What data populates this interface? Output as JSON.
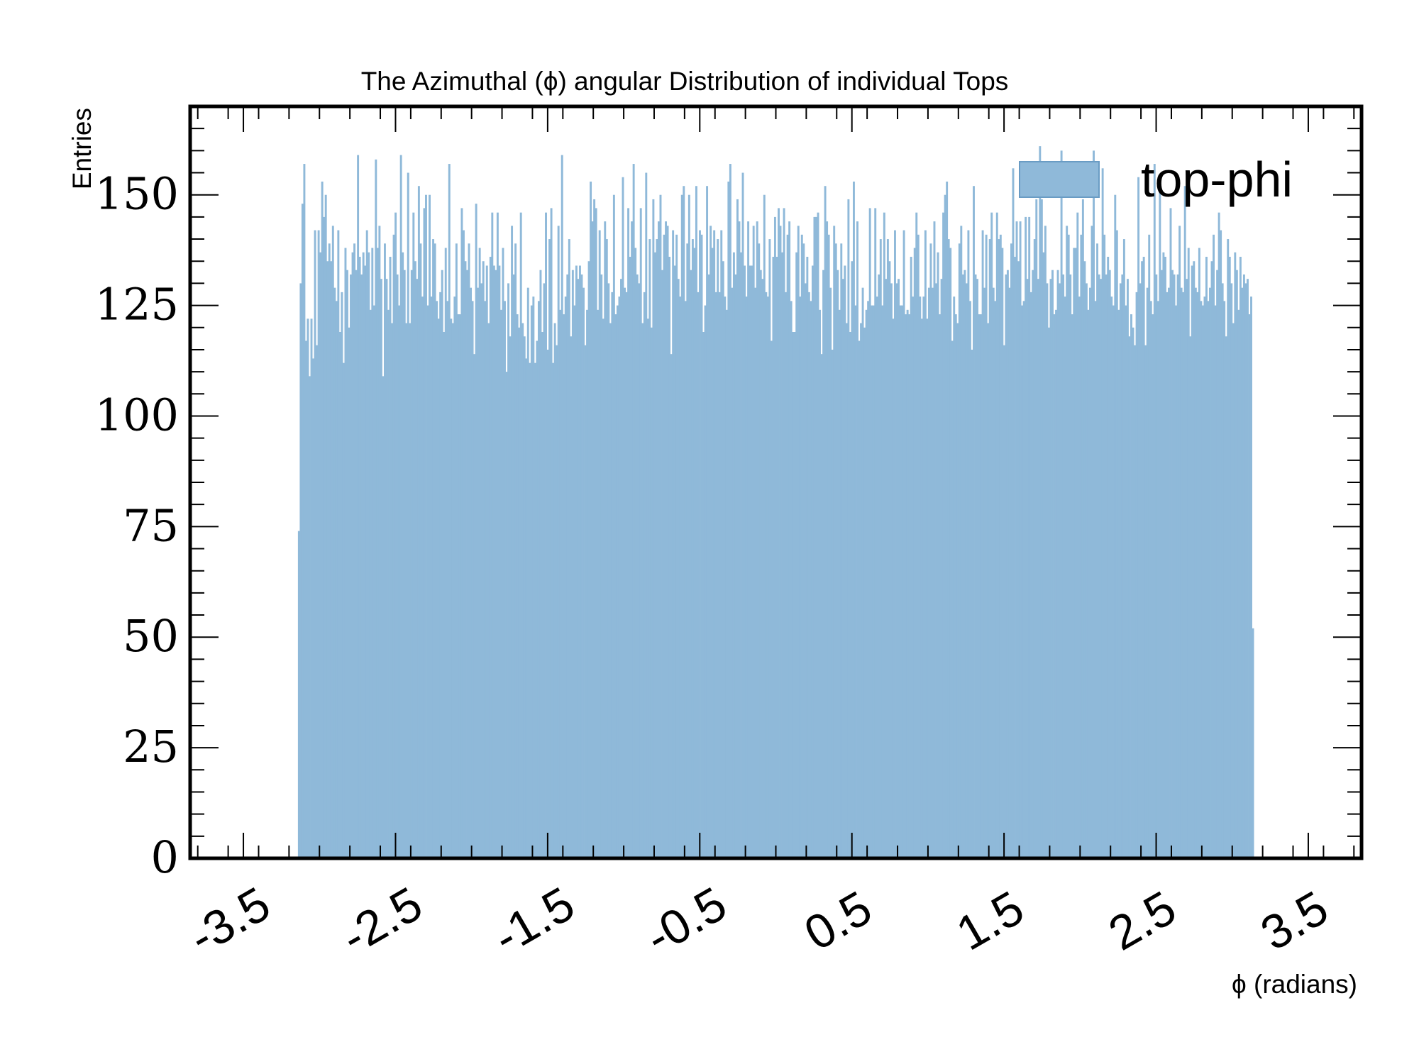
{
  "chart_data": {
    "type": "bar",
    "title": "The Azimuthal (ϕ) angular Distribution of individual Tops",
    "xlabel": "ϕ (radians)",
    "ylabel": "Entries",
    "xlim": [
      -3.85,
      3.85
    ],
    "ylim": [
      0,
      170
    ],
    "x_ticks": [
      -3.5,
      -2.5,
      -1.5,
      -0.5,
      0.5,
      1.5,
      2.5,
      3.5
    ],
    "x_tick_labels": [
      "-3.5",
      "-2.5",
      "-1.5",
      "-0.5",
      "0.5",
      "1.5",
      "2.5",
      "3.5"
    ],
    "y_ticks": [
      0,
      25,
      50,
      75,
      100,
      125,
      150
    ],
    "y_tick_labels": [
      "0",
      "25",
      "50",
      "75",
      "100",
      "125",
      "150"
    ],
    "grid": false,
    "legend_position": "top-right",
    "bin_range": [
      -3.1416,
      3.1416
    ],
    "series": [
      {
        "name": "top-phi",
        "color": "#8fb9d9",
        "values": [
          74,
          130,
          148,
          157,
          117,
          122,
          109,
          122,
          113,
          142,
          116,
          142,
          137,
          153,
          145,
          150,
          135,
          139,
          135,
          143,
          129,
          126,
          142,
          119,
          128,
          112,
          138,
          133,
          120,
          132,
          137,
          139,
          133,
          159,
          136,
          132,
          137,
          134,
          142,
          137,
          124,
          138,
          125,
          158,
          138,
          143,
          131,
          109,
          139,
          131,
          124,
          136,
          121,
          141,
          146,
          132,
          125,
          159,
          137,
          133,
          121,
          155,
          121,
          133,
          146,
          135,
          131,
          152,
          139,
          127,
          147,
          150,
          125,
          150,
          127,
          140,
          139,
          126,
          122,
          128,
          133,
          119,
          138,
          126,
          157,
          122,
          121,
          127,
          139,
          123,
          123,
          147,
          142,
          135,
          133,
          139,
          129,
          126,
          114,
          148,
          129,
          138,
          130,
          135,
          126,
          134,
          121,
          136,
          146,
          134,
          133,
          146,
          134,
          124,
          138,
          126,
          110,
          130,
          118,
          143,
          132,
          139,
          123,
          120,
          146,
          121,
          118,
          113,
          129,
          112,
          125,
          127,
          112,
          117,
          126,
          133,
          119,
          130,
          146,
          115,
          140,
          147,
          112,
          121,
          116,
          143,
          124,
          159,
          123,
          127,
          132,
          140,
          118,
          133,
          125,
          134,
          131,
          134,
          132,
          129,
          116,
          124,
          135,
          153,
          144,
          149,
          147,
          124,
          142,
          132,
          122,
          144,
          140,
          130,
          121,
          128,
          150,
          123,
          125,
          127,
          131,
          154,
          129,
          128,
          147,
          136,
          144,
          157,
          138,
          132,
          130,
          147,
          121,
          128,
          155,
          122,
          140,
          120,
          149,
          137,
          140,
          144,
          150,
          133,
          141,
          144,
          143,
          136,
          114,
          142,
          134,
          141,
          131,
          127,
          150,
          152,
          126,
          139,
          150,
          133,
          140,
          138,
          152,
          128,
          142,
          141,
          119,
          125,
          152,
          132,
          143,
          138,
          142,
          128,
          140,
          128,
          142,
          135,
          127,
          124,
          153,
          157,
          129,
          137,
          132,
          149,
          144,
          137,
          155,
          134,
          127,
          144,
          134,
          134,
          143,
          129,
          144,
          139,
          133,
          131,
          150,
          128,
          127,
          140,
          117,
          136,
          145,
          136,
          147,
          143,
          137,
          147,
          128,
          141,
          144,
          126,
          119,
          119,
          137,
          143,
          127,
          141,
          139,
          130,
          136,
          128,
          126,
          134,
          145,
          145,
          146,
          124,
          114,
          133,
          152,
          144,
          141,
          129,
          115,
          143,
          139,
          133,
          124,
          139,
          131,
          134,
          121,
          149,
          119,
          135,
          153,
          125,
          144,
          117,
          121,
          129,
          120,
          124,
          126,
          147,
          125,
          125,
          147,
          127,
          132,
          140,
          125,
          146,
          131,
          140,
          135,
          130,
          122,
          142,
          130,
          131,
          125,
          125,
          142,
          123,
          124,
          123,
          136,
          127,
          138,
          146,
          141,
          127,
          122,
          127,
          142,
          122,
          129,
          139,
          129,
          144,
          130,
          137,
          123,
          131,
          146,
          150,
          153,
          140,
          138,
          117,
          127,
          123,
          121,
          139,
          143,
          132,
          133,
          130,
          142,
          126,
          115,
          152,
          132,
          131,
          123,
          123,
          142,
          129,
          141,
          121,
          140,
          146,
          129,
          126,
          146,
          140,
          141,
          138,
          116,
          132,
          133,
          129,
          139,
          156,
          136,
          144,
          135,
          144,
          125,
          126,
          145,
          131,
          145,
          128,
          133,
          140,
          149,
          131,
          161,
          149,
          137,
          143,
          130,
          120,
          131,
          133,
          123,
          124,
          133,
          130,
          160,
          132,
          127,
          143,
          141,
          132,
          123,
          138,
          138,
          146,
          127,
          141,
          149,
          135,
          130,
          124,
          129,
          143,
          160,
          126,
          139,
          132,
          131,
          156,
          141,
          132,
          136,
          133,
          127,
          125,
          150,
          142,
          124,
          130,
          132,
          140,
          125,
          131,
          118,
          123,
          120,
          116,
          128,
          154,
          130,
          135,
          136,
          116,
          129,
          141,
          126,
          123,
          157,
          132,
          126,
          151,
          133,
          137,
          136,
          128,
          129,
          147,
          133,
          132,
          125,
          132,
          143,
          129,
          128,
          152,
          131,
          138,
          118,
          134,
          135,
          129,
          128,
          138,
          126,
          125,
          127,
          136,
          126,
          129,
          135,
          141,
          125,
          133,
          146,
          142,
          130,
          126,
          118,
          140,
          136,
          130,
          121,
          137,
          133,
          124,
          136,
          129,
          132,
          130,
          131,
          123,
          127,
          52
        ]
      }
    ]
  }
}
